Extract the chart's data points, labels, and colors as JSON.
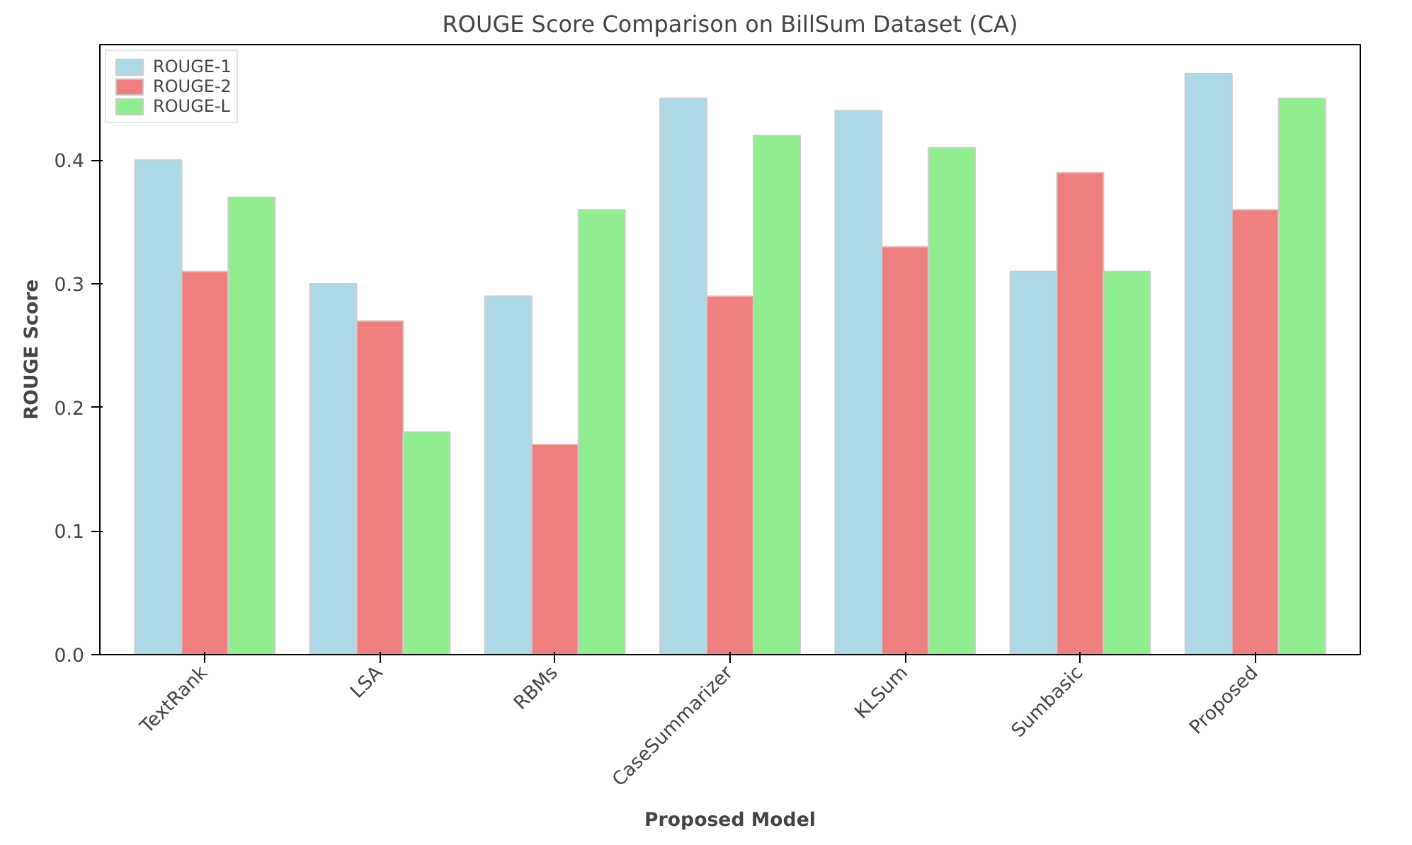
{
  "chart_data": {
    "type": "bar",
    "title": "ROUGE Score Comparison on BillSum Dataset (CA)",
    "xlabel": "Proposed Model",
    "ylabel": "ROUGE Score",
    "categories": [
      "TextRank",
      "LSA",
      "RBMs",
      "CaseSummarizer",
      "KLSum",
      "Sumbasic",
      "Proposed"
    ],
    "series": [
      {
        "name": "ROUGE-1",
        "color": "#add8e6",
        "values": [
          0.4,
          0.3,
          0.29,
          0.45,
          0.44,
          0.31,
          0.47
        ]
      },
      {
        "name": "ROUGE-2",
        "color": "#f08080",
        "values": [
          0.31,
          0.27,
          0.17,
          0.29,
          0.33,
          0.39,
          0.36
        ]
      },
      {
        "name": "ROUGE-L",
        "color": "#90ee90",
        "values": [
          0.37,
          0.18,
          0.36,
          0.42,
          0.41,
          0.31,
          0.45
        ]
      }
    ],
    "ylim": [
      0,
      0.4935
    ],
    "yticks": [
      {
        "value": 0,
        "label": "0.0"
      },
      0.1,
      0.2,
      0.3,
      0.4
    ],
    "legend": "top left",
    "grid": false
  }
}
